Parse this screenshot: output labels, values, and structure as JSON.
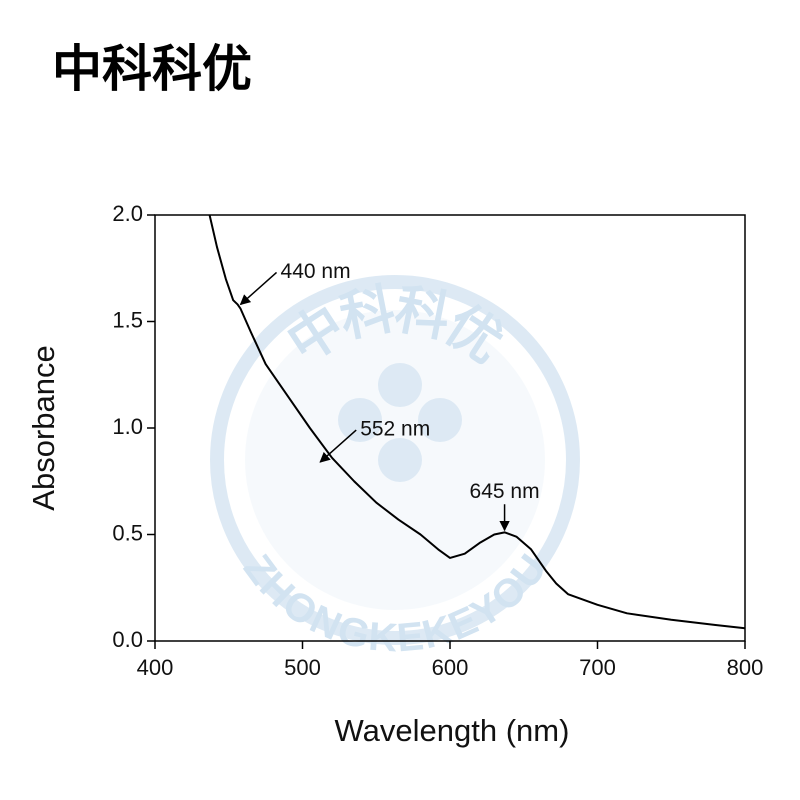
{
  "header": "中科科优",
  "watermark": {
    "top": "中科科优",
    "bottom": "ZHONGKEKEYOU"
  },
  "chart_data": {
    "type": "line",
    "x_label": "Wavelength (nm)",
    "y_label": "Absorbance",
    "x": [
      437,
      442,
      448,
      453,
      456,
      458,
      465,
      475,
      490,
      505,
      520,
      535,
      550,
      565,
      580,
      592,
      600,
      610,
      620,
      630,
      637,
      645,
      655,
      665,
      672,
      680,
      700,
      720,
      750,
      780,
      800
    ],
    "series": [
      {
        "name": "Absorbance",
        "color": "#000000",
        "values": [
          2.0,
          1.85,
          1.7,
          1.6,
          1.58,
          1.56,
          1.45,
          1.3,
          1.15,
          1.0,
          0.86,
          0.75,
          0.65,
          0.57,
          0.5,
          0.43,
          0.39,
          0.41,
          0.46,
          0.5,
          0.51,
          0.49,
          0.43,
          0.33,
          0.27,
          0.22,
          0.17,
          0.13,
          0.1,
          0.075,
          0.06
        ]
      }
    ],
    "xlim": [
      400,
      800
    ],
    "ylim": [
      0,
      2
    ],
    "xticks": [
      400,
      500,
      600,
      700,
      800
    ],
    "yticks": [
      {
        "value": 0,
        "label": "0.0"
      },
      0.5,
      {
        "value": 1,
        "label": "1.0"
      },
      1.5,
      {
        "value": 2,
        "label": "2.0"
      }
    ],
    "annotations": [
      {
        "text": "440 nm",
        "x": 458,
        "y": 1.58
      },
      {
        "text": "552 nm",
        "x": 512,
        "y": 0.84
      },
      {
        "text": "645 nm",
        "x": 637,
        "y": 0.52
      }
    ]
  }
}
